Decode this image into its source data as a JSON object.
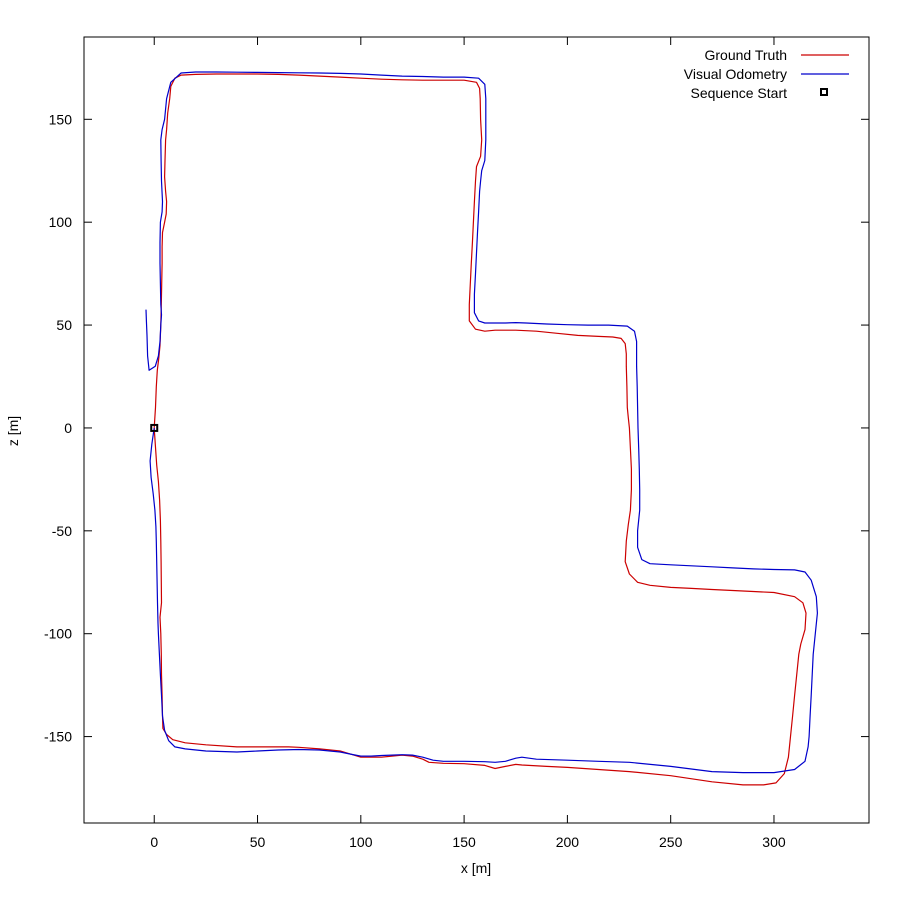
{
  "chart_data": {
    "type": "line",
    "title": "",
    "xlabel": "x [m]",
    "ylabel": "z [m]",
    "xlim": [
      -34,
      346
    ],
    "ylim": [
      -192,
      190
    ],
    "x_ticks": [
      0,
      50,
      100,
      150,
      200,
      250,
      300
    ],
    "y_ticks": [
      -150,
      -100,
      -50,
      0,
      50,
      100,
      150
    ],
    "grid": false,
    "legend_position": "top-right",
    "series": [
      {
        "name": "Ground Truth",
        "color": "#cc0000",
        "points": [
          [
            0,
            0
          ],
          [
            0.5,
            -8
          ],
          [
            1.2,
            -18
          ],
          [
            2,
            -26
          ],
          [
            2.6,
            -35
          ],
          [
            3,
            -45
          ],
          [
            3.2,
            -55
          ],
          [
            3.3,
            -65
          ],
          [
            3.4,
            -75
          ],
          [
            3.5,
            -85
          ],
          [
            2.8,
            -92
          ],
          [
            3.2,
            -100
          ],
          [
            3.4,
            -110
          ],
          [
            3.5,
            -120
          ],
          [
            3.8,
            -130
          ],
          [
            4,
            -140
          ],
          [
            4.2,
            -146
          ],
          [
            6,
            -149
          ],
          [
            9,
            -151.5
          ],
          [
            15,
            -153
          ],
          [
            25,
            -154
          ],
          [
            40,
            -155
          ],
          [
            55,
            -155
          ],
          [
            65,
            -155
          ],
          [
            70,
            -155.2
          ],
          [
            80,
            -156
          ],
          [
            90,
            -157
          ],
          [
            95,
            -158.5
          ],
          [
            100,
            -160
          ],
          [
            105,
            -160
          ],
          [
            110,
            -160
          ],
          [
            115,
            -159.5
          ],
          [
            120,
            -159
          ],
          [
            125,
            -159.5
          ],
          [
            130,
            -161
          ],
          [
            133,
            -162.5
          ],
          [
            140,
            -163
          ],
          [
            150,
            -163.2
          ],
          [
            160,
            -164
          ],
          [
            165,
            -165.5
          ],
          [
            170,
            -164.5
          ],
          [
            175,
            -163.5
          ],
          [
            178,
            -163.8
          ],
          [
            190,
            -164.5
          ],
          [
            200,
            -165
          ],
          [
            215,
            -166
          ],
          [
            230,
            -167
          ],
          [
            250,
            -169
          ],
          [
            270,
            -172
          ],
          [
            285,
            -173.5
          ],
          [
            295,
            -173.5
          ],
          [
            301,
            -172.5
          ],
          [
            305,
            -168
          ],
          [
            307,
            -160
          ],
          [
            308,
            -150
          ],
          [
            309,
            -140
          ],
          [
            310,
            -130
          ],
          [
            311,
            -120
          ],
          [
            312,
            -110
          ],
          [
            313,
            -105
          ],
          [
            315,
            -98
          ],
          [
            315.5,
            -90
          ],
          [
            314,
            -85
          ],
          [
            310,
            -82
          ],
          [
            300,
            -80
          ],
          [
            290,
            -79.5
          ],
          [
            280,
            -79
          ],
          [
            270,
            -78.5
          ],
          [
            260,
            -78
          ],
          [
            250,
            -77.5
          ],
          [
            240,
            -76.5
          ],
          [
            234,
            -75
          ],
          [
            230,
            -71
          ],
          [
            228,
            -65
          ],
          [
            228.5,
            -55
          ],
          [
            229.5,
            -47
          ],
          [
            230.5,
            -40
          ],
          [
            231,
            -30
          ],
          [
            231,
            -20
          ],
          [
            230.5,
            -10
          ],
          [
            230,
            0
          ],
          [
            229.5,
            5
          ],
          [
            229,
            10
          ],
          [
            228.8,
            20
          ],
          [
            228.5,
            30
          ],
          [
            228.5,
            36
          ],
          [
            228,
            41
          ],
          [
            226,
            43.5
          ],
          [
            222,
            44.2
          ],
          [
            215,
            44.5
          ],
          [
            205,
            45
          ],
          [
            195,
            46
          ],
          [
            185,
            47
          ],
          [
            175,
            47.5
          ],
          [
            165,
            47.5
          ],
          [
            160,
            47
          ],
          [
            155.5,
            48
          ],
          [
            152.5,
            52
          ],
          [
            152.5,
            60
          ],
          [
            153,
            70
          ],
          [
            153.5,
            80
          ],
          [
            154,
            90
          ],
          [
            154.5,
            100
          ],
          [
            155,
            110
          ],
          [
            155.5,
            120
          ],
          [
            156,
            127
          ],
          [
            158,
            132
          ],
          [
            158.5,
            140
          ],
          [
            158,
            150
          ],
          [
            157.8,
            160
          ],
          [
            157.5,
            165
          ],
          [
            156,
            168
          ],
          [
            150,
            169
          ],
          [
            140,
            169
          ],
          [
            130,
            169
          ],
          [
            120,
            169.2
          ],
          [
            110,
            169.5
          ],
          [
            100,
            170
          ],
          [
            90,
            170.5
          ],
          [
            80,
            171
          ],
          [
            70,
            171.5
          ],
          [
            60,
            171.8
          ],
          [
            50,
            172
          ],
          [
            40,
            172
          ],
          [
            30,
            172
          ],
          [
            20,
            171.8
          ],
          [
            13,
            171.5
          ],
          [
            10,
            170
          ],
          [
            8,
            166
          ],
          [
            7.5,
            160
          ],
          [
            6.5,
            153
          ],
          [
            6,
            145
          ],
          [
            5.5,
            140
          ],
          [
            5.2,
            130
          ],
          [
            5,
            122
          ],
          [
            5.5,
            115
          ],
          [
            6,
            110
          ],
          [
            5.8,
            104
          ],
          [
            5,
            100
          ],
          [
            4,
            95
          ],
          [
            3.8,
            88
          ],
          [
            3.8,
            80
          ],
          [
            3.6,
            70
          ],
          [
            3.4,
            60
          ],
          [
            3.2,
            50
          ],
          [
            2.8,
            40
          ],
          [
            2.2,
            34
          ],
          [
            1.5,
            28
          ],
          [
            1,
            20
          ],
          [
            0.6,
            10
          ],
          [
            0,
            0
          ]
        ]
      },
      {
        "name": "Visual Odometry",
        "color": "#0000cc",
        "points": [
          [
            0,
            0
          ],
          [
            -1.2,
            -8
          ],
          [
            -2,
            -16
          ],
          [
            -1.5,
            -24
          ],
          [
            -0.5,
            -32
          ],
          [
            0.3,
            -40
          ],
          [
            0.8,
            -48
          ],
          [
            1,
            -55
          ],
          [
            1.2,
            -65
          ],
          [
            1.4,
            -75
          ],
          [
            1.6,
            -85
          ],
          [
            1.8,
            -95
          ],
          [
            2,
            -100
          ],
          [
            2.5,
            -110
          ],
          [
            3,
            -120
          ],
          [
            3.5,
            -130
          ],
          [
            4,
            -140
          ],
          [
            5,
            -147
          ],
          [
            7,
            -152
          ],
          [
            10,
            -155
          ],
          [
            15,
            -156
          ],
          [
            25,
            -157
          ],
          [
            40,
            -157.5
          ],
          [
            50,
            -157
          ],
          [
            60,
            -156.5
          ],
          [
            70,
            -156.3
          ],
          [
            80,
            -156.5
          ],
          [
            90,
            -157.5
          ],
          [
            95,
            -158.5
          ],
          [
            100,
            -159.5
          ],
          [
            105,
            -159.5
          ],
          [
            110,
            -159.2
          ],
          [
            115,
            -159
          ],
          [
            120,
            -158.8
          ],
          [
            125,
            -159
          ],
          [
            130,
            -160
          ],
          [
            135,
            -161.5
          ],
          [
            140,
            -162
          ],
          [
            150,
            -162
          ],
          [
            160,
            -162.2
          ],
          [
            165,
            -162.5
          ],
          [
            170,
            -162
          ],
          [
            175,
            -160.5
          ],
          [
            178,
            -160
          ],
          [
            185,
            -161
          ],
          [
            200,
            -161.5
          ],
          [
            215,
            -162
          ],
          [
            230,
            -162.5
          ],
          [
            250,
            -164.5
          ],
          [
            270,
            -167
          ],
          [
            285,
            -167.5
          ],
          [
            300,
            -167.5
          ],
          [
            310,
            -166
          ],
          [
            315,
            -162
          ],
          [
            316.5,
            -155
          ],
          [
            317,
            -150
          ],
          [
            317.5,
            -140
          ],
          [
            318,
            -130
          ],
          [
            318.5,
            -120
          ],
          [
            319,
            -110
          ],
          [
            320,
            -100
          ],
          [
            321,
            -90
          ],
          [
            320.5,
            -82
          ],
          [
            318,
            -74
          ],
          [
            315,
            -70
          ],
          [
            310,
            -69
          ],
          [
            300,
            -68.8
          ],
          [
            290,
            -68.5
          ],
          [
            280,
            -68
          ],
          [
            270,
            -67.5
          ],
          [
            260,
            -67
          ],
          [
            250,
            -66.5
          ],
          [
            240,
            -66
          ],
          [
            236,
            -64
          ],
          [
            234,
            -58
          ],
          [
            234,
            -50
          ],
          [
            235,
            -40
          ],
          [
            235,
            -30
          ],
          [
            234.8,
            -20
          ],
          [
            234.5,
            -10
          ],
          [
            234.2,
            0
          ],
          [
            234,
            10
          ],
          [
            233.8,
            20
          ],
          [
            233.5,
            30
          ],
          [
            233.5,
            42
          ],
          [
            232.5,
            47
          ],
          [
            229,
            49.5
          ],
          [
            220,
            50
          ],
          [
            210,
            50
          ],
          [
            200,
            50.2
          ],
          [
            190,
            50.5
          ],
          [
            180,
            51
          ],
          [
            175,
            51.2
          ],
          [
            170,
            51
          ],
          [
            160,
            51
          ],
          [
            157,
            52
          ],
          [
            155,
            56
          ],
          [
            155,
            65
          ],
          [
            155.5,
            75
          ],
          [
            156,
            85
          ],
          [
            156.5,
            95
          ],
          [
            157,
            105
          ],
          [
            157.5,
            115
          ],
          [
            158,
            120
          ],
          [
            158.5,
            125
          ],
          [
            160,
            130
          ],
          [
            160.5,
            140
          ],
          [
            160.5,
            150
          ],
          [
            160.5,
            160
          ],
          [
            160,
            167
          ],
          [
            157,
            170
          ],
          [
            150,
            170.5
          ],
          [
            140,
            170.5
          ],
          [
            130,
            170.8
          ],
          [
            120,
            171
          ],
          [
            110,
            171.5
          ],
          [
            100,
            172
          ],
          [
            90,
            172.3
          ],
          [
            80,
            172.5
          ],
          [
            70,
            172.6
          ],
          [
            60,
            172.7
          ],
          [
            50,
            172.8
          ],
          [
            40,
            172.9
          ],
          [
            30,
            173
          ],
          [
            20,
            173
          ],
          [
            13,
            172.5
          ],
          [
            8,
            168
          ],
          [
            6,
            160
          ],
          [
            5,
            150
          ],
          [
            3.8,
            145
          ],
          [
            3.2,
            140
          ],
          [
            3.3,
            130
          ],
          [
            3.5,
            120
          ],
          [
            4,
            110
          ],
          [
            3.8,
            105
          ],
          [
            3,
            100
          ],
          [
            2.8,
            90
          ],
          [
            2.8,
            80
          ],
          [
            3,
            70
          ],
          [
            3.2,
            60
          ],
          [
            3.5,
            55
          ],
          [
            3.2,
            50
          ],
          [
            2.8,
            42
          ],
          [
            2,
            35
          ],
          [
            0.5,
            30
          ],
          [
            -2.5,
            28
          ],
          [
            -3.2,
            35
          ],
          [
            -3.5,
            45
          ],
          [
            -3.8,
            52
          ],
          [
            -4,
            57.5
          ]
        ]
      }
    ],
    "markers": [
      {
        "name": "Sequence Start",
        "x": 0,
        "y": 0,
        "shape": "square"
      }
    ]
  }
}
